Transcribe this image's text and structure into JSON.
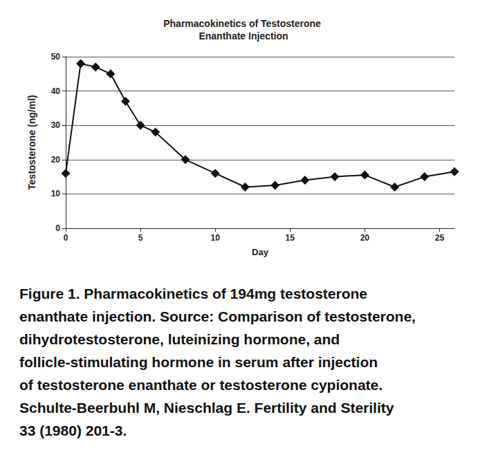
{
  "chart_data": {
    "type": "line",
    "title": "Pharmacokinetics of Testosterone Enanthate Injection",
    "x_label": "Day",
    "y_label": "Testosterone (ng/ml)",
    "x": [
      0,
      1,
      2,
      3,
      4,
      5,
      6,
      8,
      10,
      12,
      14,
      16,
      18,
      20,
      22,
      24,
      26
    ],
    "values": [
      16,
      48,
      47,
      45,
      37,
      30,
      28,
      20,
      16,
      12,
      12.5,
      14,
      15,
      15.5,
      12,
      15,
      16.5
    ],
    "color": "#111111",
    "marker": "diamond",
    "xlim": [
      0,
      26
    ],
    "xticks": [
      0,
      5,
      10,
      15,
      20,
      25
    ],
    "ylim": [
      0,
      50
    ],
    "yticks": [
      0,
      10,
      20,
      30,
      40,
      50
    ],
    "grid": true,
    "caption": [
      "Figure 1. Pharmacokinetics of 194mg testosterone",
      "enanthate injection. Source: Comparison of testosterone,",
      "dihydrotestosterone, luteinizing hormone, and",
      "follicle-stimulating hormone in serum after injection",
      "of testosterone enanthate or testosterone cypionate.",
      "Schulte-Beerbuhl M, Nieschlag E. Fertility and Sterility",
      "33 (1980) 201-3."
    ]
  }
}
